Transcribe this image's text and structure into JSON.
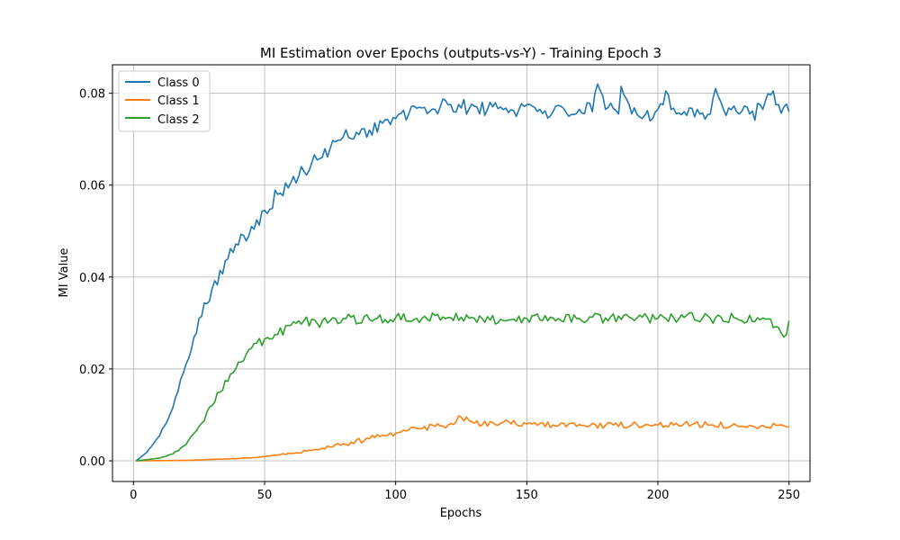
{
  "chart_data": {
    "type": "line",
    "title": "MI Estimation over Epochs (outputs-vs-Y) - Training Epoch 3",
    "xlabel": "Epochs",
    "ylabel": "MI Value",
    "xlim": [
      -8,
      258
    ],
    "ylim": [
      -0.0045,
      0.0862
    ],
    "xticks": [
      0,
      50,
      100,
      150,
      200,
      250
    ],
    "yticks": [
      0.0,
      0.02,
      0.04,
      0.06,
      0.08
    ],
    "ytick_labels": [
      "0.00",
      "0.02",
      "0.04",
      "0.06",
      "0.08"
    ],
    "grid": true,
    "legend_position": "top-left",
    "x_start": 1,
    "x_end": 250,
    "series": [
      {
        "name": "Class 0",
        "color": "#1f77b4",
        "x": [
          1,
          5,
          10,
          15,
          20,
          25,
          30,
          35,
          40,
          45,
          50,
          55,
          60,
          65,
          70,
          75,
          80,
          85,
          90,
          95,
          100,
          105,
          110,
          115,
          120,
          125,
          130,
          135,
          140,
          145,
          150,
          155,
          160,
          165,
          170,
          175,
          177,
          180,
          185,
          186,
          190,
          195,
          200,
          203,
          205,
          210,
          215,
          220,
          222,
          225,
          230,
          235,
          240,
          244,
          245,
          250
        ],
        "y": [
          0.0,
          0.0018,
          0.0055,
          0.0115,
          0.021,
          0.031,
          0.0375,
          0.0435,
          0.047,
          0.051,
          0.0545,
          0.058,
          0.0605,
          0.063,
          0.0655,
          0.068,
          0.0705,
          0.0715,
          0.072,
          0.0735,
          0.0745,
          0.0755,
          0.0768,
          0.0765,
          0.0775,
          0.0768,
          0.0772,
          0.0765,
          0.077,
          0.0762,
          0.0775,
          0.0765,
          0.076,
          0.0758,
          0.0765,
          0.076,
          0.082,
          0.0765,
          0.0755,
          0.0815,
          0.0755,
          0.0752,
          0.0765,
          0.0805,
          0.0765,
          0.076,
          0.0765,
          0.0755,
          0.081,
          0.0765,
          0.076,
          0.0755,
          0.0765,
          0.0805,
          0.0775,
          0.076
        ],
        "noise": 0.0018
      },
      {
        "name": "Class 1",
        "color": "#ff7f0e",
        "x": [
          1,
          20,
          40,
          50,
          60,
          70,
          80,
          90,
          100,
          110,
          120,
          125,
          130,
          140,
          150,
          160,
          170,
          180,
          190,
          200,
          210,
          220,
          230,
          240,
          250
        ],
        "y": [
          0.0,
          0.0001,
          0.0005,
          0.0009,
          0.0016,
          0.0025,
          0.0037,
          0.0048,
          0.006,
          0.007,
          0.0078,
          0.0095,
          0.0082,
          0.0082,
          0.008,
          0.0078,
          0.0079,
          0.0077,
          0.0078,
          0.0078,
          0.0081,
          0.0078,
          0.0077,
          0.0077,
          0.0073
        ],
        "noise": 0.0007
      },
      {
        "name": "Class 2",
        "color": "#2ca02c",
        "x": [
          1,
          10,
          15,
          20,
          25,
          30,
          35,
          40,
          45,
          50,
          55,
          60,
          65,
          70,
          75,
          80,
          90,
          100,
          110,
          120,
          130,
          140,
          150,
          160,
          170,
          180,
          190,
          200,
          210,
          220,
          230,
          240,
          249,
          250
        ],
        "y": [
          0.0,
          0.0006,
          0.0015,
          0.0035,
          0.0075,
          0.012,
          0.0175,
          0.0215,
          0.0245,
          0.0265,
          0.0275,
          0.0295,
          0.0305,
          0.03,
          0.0305,
          0.031,
          0.0308,
          0.0312,
          0.031,
          0.0312,
          0.031,
          0.0308,
          0.031,
          0.0311,
          0.031,
          0.0311,
          0.031,
          0.031,
          0.0312,
          0.031,
          0.031,
          0.0311,
          0.0275,
          0.0305
        ],
        "noise": 0.0011
      }
    ]
  }
}
